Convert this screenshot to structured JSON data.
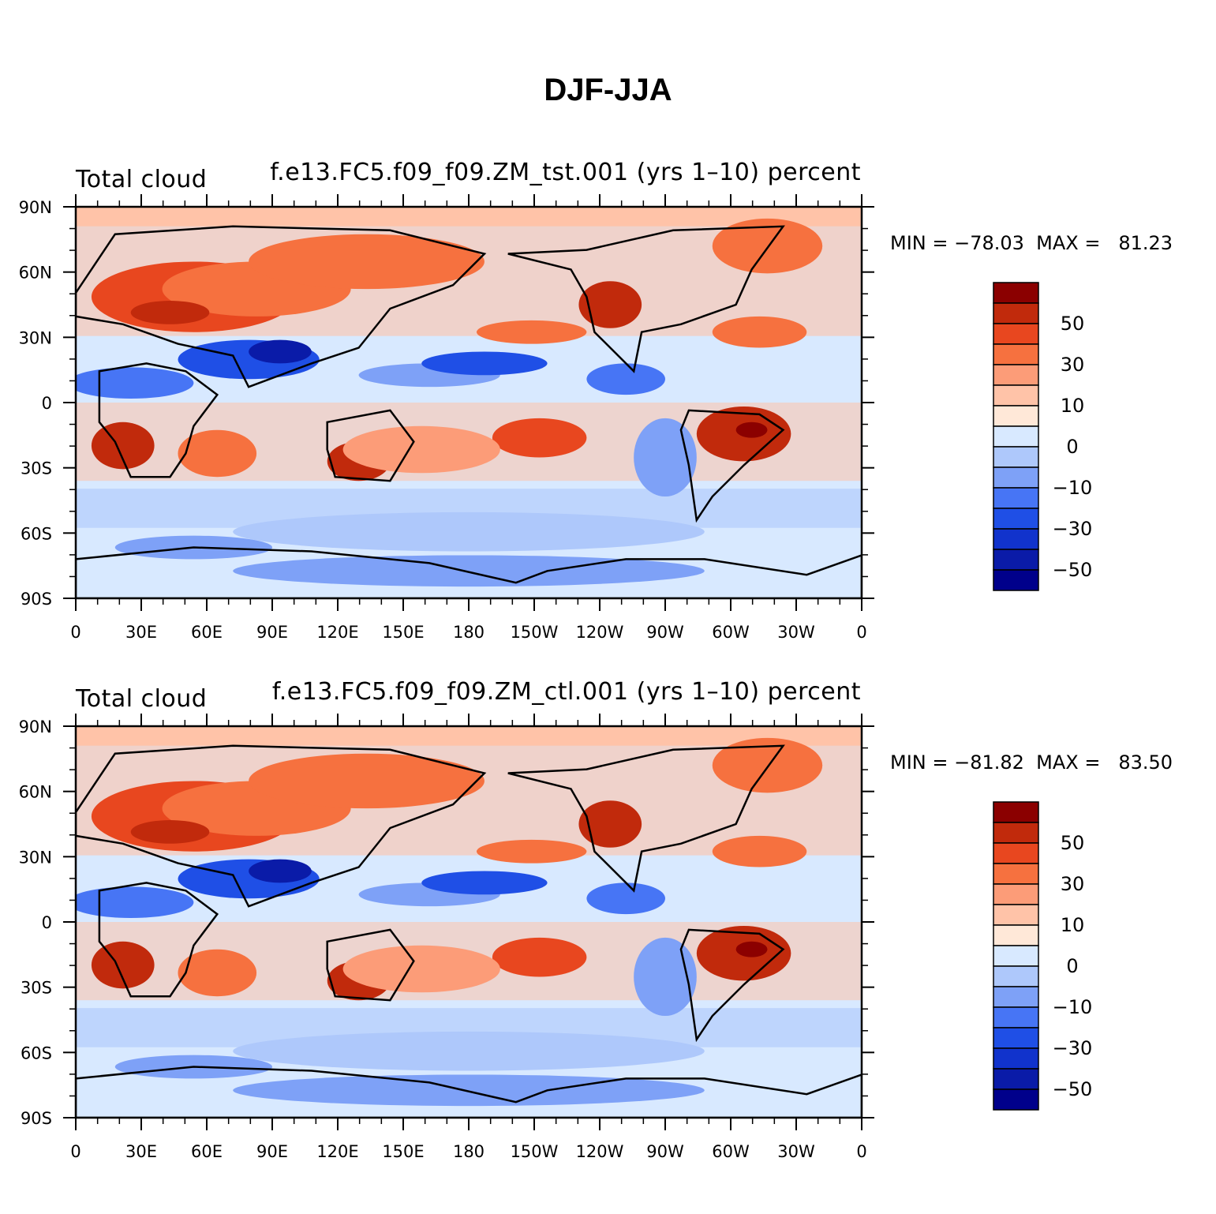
{
  "title": "DJF-JJA",
  "colorbar": {
    "colors": [
      "#00008b",
      "#0a1ba8",
      "#1133cc",
      "#1f4fe6",
      "#4775f5",
      "#7ea1f7",
      "#aec8fb",
      "#d8e9ff",
      "#ffe8d8",
      "#ffc3a8",
      "#fc9c78",
      "#f6713f",
      "#e8471f",
      "#c12a0c",
      "#8b0000"
    ],
    "labels": [
      "50",
      "30",
      "10",
      "0",
      "−10",
      "−30",
      "−50"
    ]
  },
  "axes": {
    "y_labels": [
      "90N",
      "60N",
      "30N",
      "0",
      "30S",
      "60S",
      "90S"
    ],
    "x_labels": [
      "0",
      "30E",
      "60E",
      "90E",
      "120E",
      "150E",
      "180",
      "150W",
      "120W",
      "90W",
      "60W",
      "30W",
      "0"
    ]
  },
  "panels": [
    {
      "left_label": "Total cloud",
      "right_label": "f.e13.FC5.f09_f09.ZM_tst.001 (yrs 1–10) percent",
      "stats": "MIN = −78.03  MAX =   81.23"
    },
    {
      "left_label": "Total cloud",
      "right_label": "f.e13.FC5.f09_f09.ZM_ctl.001 (yrs 1–10) percent",
      "stats": "MIN = −81.82  MAX =   83.50"
    }
  ]
}
